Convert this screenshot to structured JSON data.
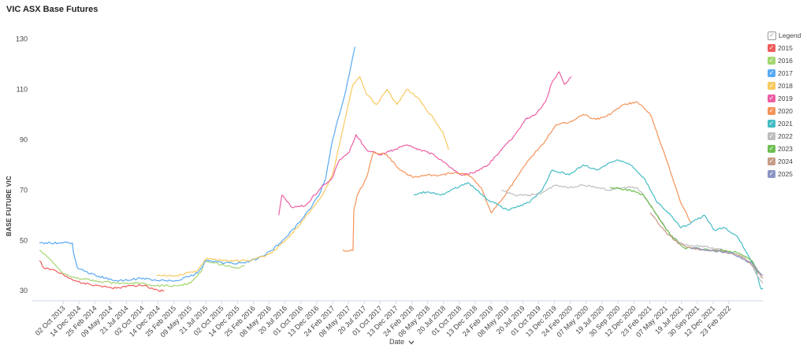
{
  "title": "VIC ASX Base Futures",
  "legend_title": "Legend",
  "check_glyph": "✓",
  "xlabel_text": "Date",
  "xlabel_chevron": "chevron-down-icon",
  "chart_data": {
    "type": "line",
    "title": "VIC ASX Base Futures",
    "ylabel": "BASE FUTURE VIC",
    "xlabel": "Date",
    "ylim": [
      26,
      133
    ],
    "xlim": [
      "2013-08-15",
      "2022-08-20"
    ],
    "yticks": [
      30,
      50,
      70,
      90,
      110,
      130
    ],
    "xticks": [
      "02 Oct 2013",
      "14 Dec 2014",
      "25 Feb 2014",
      "09 May 2014",
      "21 Jul 2014",
      "02 Oct 2014",
      "14 Dec 2014",
      "25 Feb 2015",
      "09 May 2015",
      "21 Jul 2015",
      "02 Oct 2015",
      "14 Dec 2015",
      "25 Feb 2016",
      "08 May 2016",
      "20 Jul 2016",
      "01 Oct 2016",
      "13 Dec 2016",
      "24 Feb 2017",
      "08 May 2017",
      "20 Jul 2017",
      "01 Oct 2017",
      "13 Dec 2017",
      "24 Feb 2018",
      "08 May 2018",
      "20 Jul 2018",
      "01 Oct 2018",
      "13 Dec 2018",
      "24 Feb 2019",
      "08 May 2019",
      "20 Jul 2019",
      "01 Oct 2019",
      "13 Dec 2019",
      "24 Feb 2020",
      "07 May 2020",
      "19 Jul 2020",
      "30 Sep 2020",
      "12 Dec 2020",
      "23 Feb 2021",
      "07 May 2021",
      "19 Jul 2021",
      "30 Sep 2021",
      "12 Dec 2021",
      "23 Feb 2022"
    ],
    "grid": false,
    "legend_position": "right",
    "series": [
      {
        "name": "2015",
        "color": "#f15c5c",
        "points": [
          [
            "2013-09-20",
            42
          ],
          [
            "2013-10-10",
            39
          ],
          [
            "2013-12-01",
            38
          ],
          [
            "2014-02-01",
            35
          ],
          [
            "2014-04-01",
            33
          ],
          [
            "2014-06-15",
            32
          ],
          [
            "2014-09-01",
            31
          ],
          [
            "2014-11-01",
            32
          ],
          [
            "2015-01-01",
            32
          ],
          [
            "2015-02-10",
            31
          ],
          [
            "2015-03-10",
            30
          ],
          [
            "2015-04-05",
            30
          ]
        ]
      },
      {
        "name": "2016",
        "color": "#a4d670",
        "points": [
          [
            "2013-09-20",
            46
          ],
          [
            "2013-11-01",
            43
          ],
          [
            "2014-01-01",
            37
          ],
          [
            "2014-03-01",
            35
          ],
          [
            "2014-06-01",
            34
          ],
          [
            "2014-09-01",
            33
          ],
          [
            "2014-12-01",
            33
          ],
          [
            "2015-03-01",
            32
          ],
          [
            "2015-06-01",
            32
          ],
          [
            "2015-08-01",
            33
          ],
          [
            "2015-09-20",
            38
          ],
          [
            "2015-10-05",
            42
          ],
          [
            "2015-11-15",
            41
          ],
          [
            "2016-01-01",
            40
          ],
          [
            "2016-03-01",
            39
          ],
          [
            "2016-04-01",
            40
          ]
        ]
      },
      {
        "name": "2017",
        "color": "#5aa9f2",
        "points": [
          [
            "2013-09-20",
            49
          ],
          [
            "2014-02-15",
            49
          ],
          [
            "2014-02-20",
            45
          ],
          [
            "2014-03-10",
            39
          ],
          [
            "2014-06-01",
            36
          ],
          [
            "2014-09-01",
            34
          ],
          [
            "2015-01-01",
            35
          ],
          [
            "2015-03-01",
            34
          ],
          [
            "2015-06-01",
            34
          ],
          [
            "2015-09-01",
            37
          ],
          [
            "2015-10-10",
            42
          ],
          [
            "2016-01-01",
            41
          ],
          [
            "2016-04-01",
            41
          ],
          [
            "2016-06-01",
            43
          ],
          [
            "2016-08-01",
            46
          ],
          [
            "2016-10-01",
            51
          ],
          [
            "2016-12-01",
            57
          ],
          [
            "2017-01-15",
            62
          ],
          [
            "2017-03-01",
            68
          ],
          [
            "2017-04-01",
            75
          ],
          [
            "2017-05-01",
            90
          ],
          [
            "2017-06-01",
            100
          ],
          [
            "2017-07-01",
            110
          ],
          [
            "2017-07-20",
            118
          ],
          [
            "2017-08-10",
            127
          ]
        ]
      },
      {
        "name": "2018",
        "color": "#f8c95f",
        "points": [
          [
            "2015-03-01",
            36
          ],
          [
            "2015-06-01",
            36
          ],
          [
            "2015-09-01",
            38
          ],
          [
            "2015-10-15",
            43
          ],
          [
            "2016-01-01",
            42
          ],
          [
            "2016-05-01",
            42
          ],
          [
            "2016-08-01",
            45
          ],
          [
            "2016-10-01",
            50
          ],
          [
            "2016-12-01",
            56
          ],
          [
            "2017-02-01",
            63
          ],
          [
            "2017-03-15",
            68
          ],
          [
            "2017-05-01",
            76
          ],
          [
            "2017-06-01",
            88
          ],
          [
            "2017-07-01",
            100
          ],
          [
            "2017-08-01",
            112
          ],
          [
            "2017-09-01",
            115
          ],
          [
            "2017-10-01",
            108
          ],
          [
            "2017-11-15",
            104
          ],
          [
            "2018-01-01",
            110
          ],
          [
            "2018-02-15",
            104
          ],
          [
            "2018-04-01",
            110
          ],
          [
            "2018-05-15",
            107
          ],
          [
            "2018-06-20",
            103
          ],
          [
            "2018-08-01",
            98
          ],
          [
            "2018-09-10",
            93
          ],
          [
            "2018-10-05",
            86
          ]
        ]
      },
      {
        "name": "2019",
        "color": "#ec5fa3",
        "points": [
          [
            "2016-09-01",
            60
          ],
          [
            "2016-09-15",
            68
          ],
          [
            "2016-11-01",
            63
          ],
          [
            "2017-01-01",
            64
          ],
          [
            "2017-03-01",
            70
          ],
          [
            "2017-05-01",
            75
          ],
          [
            "2017-06-01",
            82
          ],
          [
            "2017-07-15",
            85
          ],
          [
            "2017-08-15",
            92
          ],
          [
            "2017-10-01",
            86
          ],
          [
            "2017-12-01",
            84
          ],
          [
            "2018-02-01",
            86
          ],
          [
            "2018-04-01",
            88
          ],
          [
            "2018-06-01",
            86
          ],
          [
            "2018-08-01",
            84
          ],
          [
            "2018-10-01",
            80
          ],
          [
            "2018-12-01",
            76
          ],
          [
            "2019-02-01",
            77
          ],
          [
            "2019-04-01",
            80
          ],
          [
            "2019-06-01",
            86
          ],
          [
            "2019-08-01",
            92
          ],
          [
            "2019-09-15",
            98
          ],
          [
            "2019-11-01",
            100
          ],
          [
            "2019-12-15",
            105
          ],
          [
            "2020-01-15",
            113
          ],
          [
            "2020-02-15",
            117
          ],
          [
            "2020-03-10",
            112
          ],
          [
            "2020-04-10",
            115
          ]
        ]
      },
      {
        "name": "2020",
        "color": "#f5935a",
        "points": [
          [
            "2017-06-15",
            46
          ],
          [
            "2017-08-01",
            46
          ],
          [
            "2017-08-05",
            62
          ],
          [
            "2017-08-20",
            68
          ],
          [
            "2017-10-01",
            75
          ],
          [
            "2017-11-01",
            85
          ],
          [
            "2018-01-01",
            84
          ],
          [
            "2018-03-01",
            78
          ],
          [
            "2018-05-01",
            75
          ],
          [
            "2018-07-01",
            76
          ],
          [
            "2018-09-01",
            76
          ],
          [
            "2018-11-01",
            77
          ],
          [
            "2019-01-01",
            76
          ],
          [
            "2019-03-01",
            71
          ],
          [
            "2019-04-15",
            61
          ],
          [
            "2019-06-01",
            66
          ],
          [
            "2019-08-01",
            74
          ],
          [
            "2019-10-01",
            82
          ],
          [
            "2019-12-01",
            88
          ],
          [
            "2020-02-01",
            96
          ],
          [
            "2020-04-01",
            97
          ],
          [
            "2020-06-01",
            100
          ],
          [
            "2020-08-01",
            98
          ],
          [
            "2020-10-01",
            100
          ],
          [
            "2020-12-01",
            104
          ],
          [
            "2021-02-01",
            105
          ],
          [
            "2021-04-01",
            100
          ],
          [
            "2021-06-01",
            85
          ],
          [
            "2021-07-15",
            73
          ],
          [
            "2021-08-15",
            65
          ],
          [
            "2021-10-01",
            57
          ]
        ]
      },
      {
        "name": "2021",
        "color": "#45bcc4",
        "points": [
          [
            "2018-05-01",
            68
          ],
          [
            "2018-06-01",
            69
          ],
          [
            "2018-08-01",
            69
          ],
          [
            "2018-09-01",
            68
          ],
          [
            "2019-01-01",
            73
          ],
          [
            "2019-04-01",
            66
          ],
          [
            "2019-07-01",
            62
          ],
          [
            "2019-10-01",
            65
          ],
          [
            "2019-12-01",
            70
          ],
          [
            "2020-01-15",
            78
          ],
          [
            "2020-04-01",
            76
          ],
          [
            "2020-06-01",
            80
          ],
          [
            "2020-08-01",
            78
          ],
          [
            "2020-11-01",
            82
          ],
          [
            "2021-01-01",
            80
          ],
          [
            "2021-03-01",
            75
          ],
          [
            "2021-05-01",
            65
          ],
          [
            "2021-07-01",
            60
          ],
          [
            "2021-08-15",
            55
          ],
          [
            "2021-10-01",
            57
          ],
          [
            "2021-12-01",
            60
          ],
          [
            "2022-01-15",
            54
          ],
          [
            "2022-03-01",
            55
          ],
          [
            "2022-05-01",
            51
          ],
          [
            "2022-06-15",
            44
          ],
          [
            "2022-07-20",
            38
          ],
          [
            "2022-08-10",
            31
          ],
          [
            "2022-08-20",
            31
          ]
        ]
      },
      {
        "name": "2022",
        "color": "#bdbdbd",
        "points": [
          [
            "2019-06-01",
            70
          ],
          [
            "2019-08-01",
            68
          ],
          [
            "2019-10-01",
            68
          ],
          [
            "2019-12-01",
            69
          ],
          [
            "2020-02-01",
            72
          ],
          [
            "2020-04-01",
            71
          ],
          [
            "2020-06-01",
            72
          ],
          [
            "2020-08-01",
            71
          ],
          [
            "2020-10-01",
            70
          ],
          [
            "2020-12-01",
            71
          ],
          [
            "2021-02-01",
            71
          ],
          [
            "2021-03-01",
            68
          ],
          [
            "2021-05-01",
            60
          ],
          [
            "2021-07-01",
            52
          ],
          [
            "2021-09-01",
            48
          ],
          [
            "2021-11-01",
            48
          ],
          [
            "2022-01-01",
            47
          ],
          [
            "2022-03-01",
            46
          ],
          [
            "2022-05-01",
            44
          ],
          [
            "2022-07-01",
            40
          ],
          [
            "2022-08-10",
            34
          ],
          [
            "2022-08-20",
            33
          ]
        ]
      },
      {
        "name": "2023",
        "color": "#6cbf4f",
        "points": [
          [
            "2020-10-01",
            71
          ],
          [
            "2021-01-01",
            70
          ],
          [
            "2021-03-01",
            68
          ],
          [
            "2021-05-01",
            60
          ],
          [
            "2021-07-01",
            52
          ],
          [
            "2021-09-01",
            47
          ],
          [
            "2021-11-01",
            47
          ],
          [
            "2022-01-01",
            46
          ],
          [
            "2022-03-01",
            46
          ],
          [
            "2022-05-01",
            45
          ],
          [
            "2022-07-01",
            42
          ],
          [
            "2022-08-10",
            36
          ],
          [
            "2022-08-20",
            35
          ]
        ]
      },
      {
        "name": "2024",
        "color": "#c79b86",
        "points": [
          [
            "2021-04-01",
            61
          ],
          [
            "2021-06-01",
            54
          ],
          [
            "2021-08-01",
            49
          ],
          [
            "2021-10-01",
            47
          ],
          [
            "2021-12-01",
            46
          ],
          [
            "2022-02-01",
            46
          ],
          [
            "2022-04-01",
            45
          ],
          [
            "2022-06-01",
            43
          ],
          [
            "2022-08-01",
            37
          ],
          [
            "2022-08-20",
            35
          ]
        ]
      },
      {
        "name": "2025",
        "color": "#8a94c4",
        "points": [
          [
            "2021-10-01",
            47
          ],
          [
            "2022-01-01",
            46
          ],
          [
            "2022-04-01",
            45
          ],
          [
            "2022-07-01",
            41
          ],
          [
            "2022-08-20",
            36
          ]
        ]
      }
    ]
  }
}
